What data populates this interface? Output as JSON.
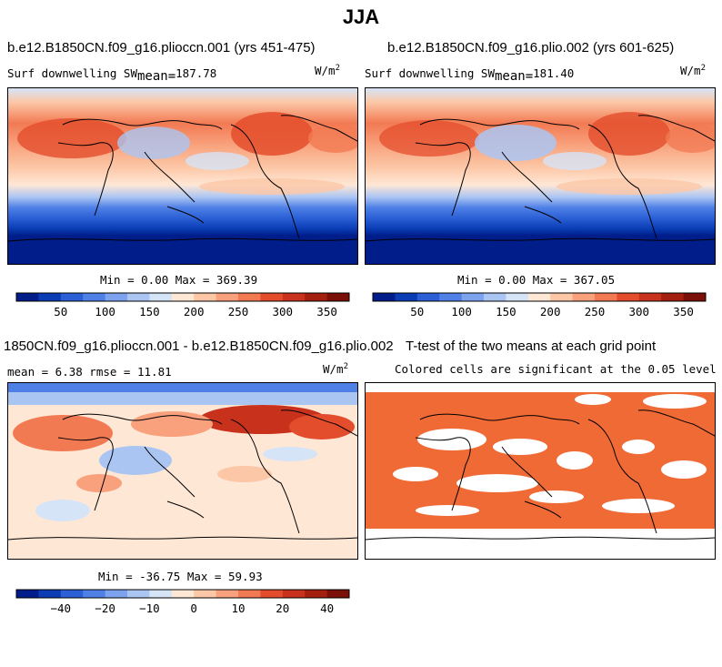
{
  "main_title": "JJA",
  "panels": {
    "p1": {
      "title": "b.e12.B1850CN.f09_g16.plioccn.001 (yrs 451-475)",
      "variable": "Surf downwelling SW",
      "mean_label": "mean=",
      "mean_value": "187.78",
      "units": "W/m",
      "units_exp": "2",
      "minmax": "Min =   0.00 Max = 369.39"
    },
    "p2": {
      "title": "b.e12.B1850CN.f09_g16.plio.002 (yrs 601-625)",
      "variable": "Surf downwelling SW",
      "mean_label": "mean=",
      "mean_value": "181.40",
      "units": "W/m",
      "units_exp": "2",
      "minmax": "Min =   0.00 Max = 367.05"
    },
    "p3": {
      "title": "1850CN.f09_g16.plioccn.001 - b.e12.B1850CN.f09_g16.plio.002",
      "stats": "mean =    6.38    rmse =  11.81",
      "units": "W/m",
      "units_exp": "2",
      "minmax": "Min = -36.75 Max =  59.93"
    },
    "p4": {
      "title": "T-test of the two means at each grid point",
      "subtitle": "Colored cells are significant at the 0.05 level"
    }
  },
  "colorbars": {
    "absolute": {
      "labels": [
        "50",
        "100",
        "150",
        "200",
        "250",
        "300",
        "350"
      ],
      "colors": [
        "#001d8a",
        "#0a3cb4",
        "#2a5fd6",
        "#4f80e6",
        "#7ea3ee",
        "#abc5f3",
        "#d6e4f8",
        "#ffe7d6",
        "#fcc7a6",
        "#f8a17c",
        "#f27a53",
        "#e44d2c",
        "#c8321d",
        "#a3200f",
        "#7a1008"
      ]
    },
    "difference": {
      "labels": [
        "-40",
        "-20",
        "-10",
        "0",
        "10",
        "20",
        "40"
      ],
      "colors": [
        "#001d8a",
        "#0a3cb4",
        "#2a5fd6",
        "#4f80e6",
        "#7ea3ee",
        "#abc5f3",
        "#d6e4f8",
        "#ffe7d6",
        "#fcc7a6",
        "#f8a17c",
        "#f27a53",
        "#e44d2c",
        "#c8321d",
        "#a3200f",
        "#7a1008"
      ]
    }
  },
  "colors": {
    "significant": "#f06a35",
    "land_outline": "#000000"
  }
}
